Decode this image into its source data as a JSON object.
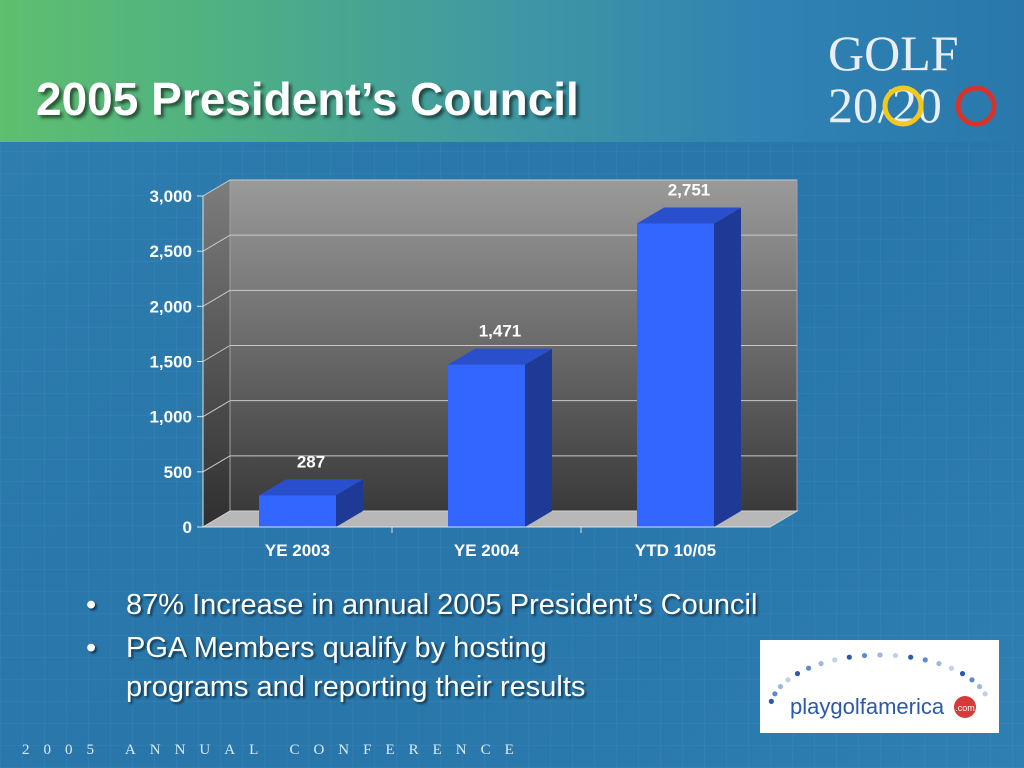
{
  "slide": {
    "title": "2005 President’s Council",
    "footer": "2005 ANNUAL CONFERENCE"
  },
  "logo": {
    "line1": "GOLF",
    "line2": "20/20"
  },
  "bullets": [
    {
      "text": "87% Increase in annual 2005 President’s Council"
    },
    {
      "line1": "PGA Members qualify by hosting",
      "line2": "programs and reporting their results"
    }
  ],
  "partner_logo": {
    "text": "playgolfamerica",
    "suffix": ".com"
  },
  "chart_data": {
    "type": "bar",
    "categories": [
      "YE 2003",
      "YE 2004",
      "YTD 10/05"
    ],
    "values": [
      287,
      1471,
      2751
    ],
    "data_labels": [
      "287",
      "1,471",
      "2,751"
    ],
    "yticks": [
      "0",
      "500",
      "1,000",
      "1,500",
      "2,000",
      "2,500",
      "3,000"
    ],
    "ylim": [
      0,
      3000
    ],
    "grid": true,
    "legend": "none",
    "colors": {
      "bar_front": "#3366ff",
      "bar_top": "#2a4fcc",
      "bar_side": "#1e3a96"
    }
  }
}
